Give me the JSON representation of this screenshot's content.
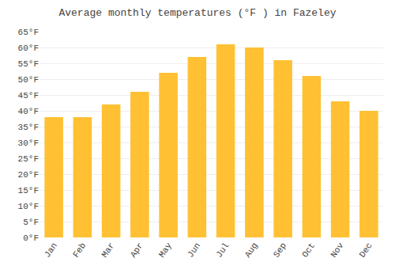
{
  "chart_data": {
    "type": "bar",
    "title": "Average monthly temperatures (°F ) in Fazeley",
    "categories": [
      "Jan",
      "Feb",
      "Mar",
      "Apr",
      "May",
      "Jun",
      "Jul",
      "Aug",
      "Sep",
      "Oct",
      "Nov",
      "Dec"
    ],
    "values": [
      38,
      38,
      42,
      46,
      52,
      57,
      61,
      60,
      56,
      51,
      43,
      40
    ],
    "color": "#FFC133",
    "ylim": [
      0,
      65
    ],
    "yticks": [
      {
        "value": 0,
        "label": "0°F"
      },
      {
        "value": 5,
        "label": "5°F"
      },
      {
        "value": 10,
        "label": "10°F"
      },
      {
        "value": 15,
        "label": "15°F"
      },
      {
        "value": 20,
        "label": "20°F"
      },
      {
        "value": 25,
        "label": "25°F"
      },
      {
        "value": 30,
        "label": "30°F"
      },
      {
        "value": 35,
        "label": "35°F"
      },
      {
        "value": 40,
        "label": "40°F"
      },
      {
        "value": 45,
        "label": "45°F"
      },
      {
        "value": 50,
        "label": "50°F"
      },
      {
        "value": 55,
        "label": "55°F"
      },
      {
        "value": 60,
        "label": "60°F"
      },
      {
        "value": 65,
        "label": "65°F"
      }
    ],
    "grid": true
  }
}
